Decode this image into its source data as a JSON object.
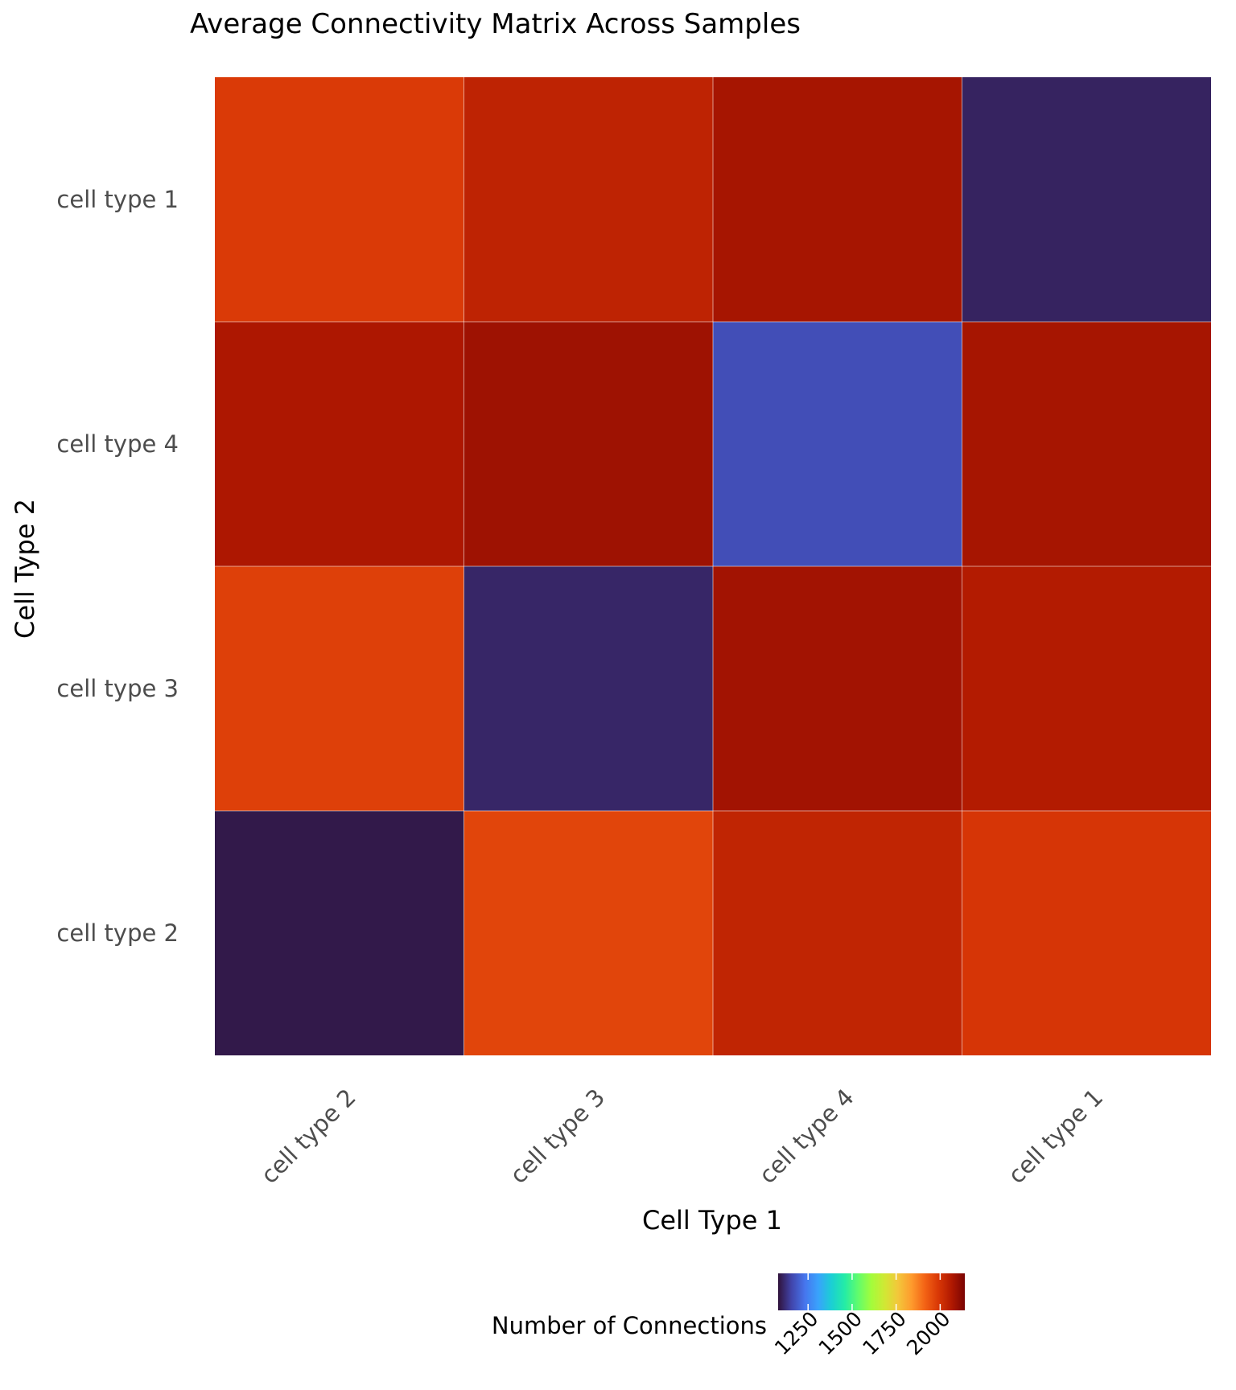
{
  "chart_data": {
    "type": "heatmap",
    "title": "Average Connectivity Matrix Across Samples",
    "xlabel": "Cell Type 1",
    "ylabel": "Cell Type 2",
    "x_categories": [
      "cell type 2",
      "cell type 3",
      "cell type 4",
      "cell type 1"
    ],
    "y_categories_top_to_bottom": [
      "cell type 1",
      "cell type 4",
      "cell type 3",
      "cell type 2"
    ],
    "values": [
      [
        1985,
        2040,
        2080,
        1105
      ],
      [
        2070,
        2090,
        1170,
        2080
      ],
      [
        1975,
        1110,
        2085,
        2060
      ],
      [
        1090,
        1965,
        2035,
        1995
      ]
    ],
    "colorscale": {
      "name": "turbo",
      "min": 1080,
      "max": 2140,
      "colors": [
        "#30123b",
        "#4145ab",
        "#4675ed",
        "#39a2fc",
        "#1bcfd4",
        "#24eca6",
        "#61fc6c",
        "#a4fc3b",
        "#d1e834",
        "#f3c63a",
        "#fe9b2d",
        "#f36315",
        "#d93806",
        "#b11901",
        "#7a0403"
      ]
    },
    "legend": {
      "title": "Number of Connections",
      "ticks": [
        1250,
        1500,
        1750,
        2000
      ],
      "placement": "bottom"
    },
    "grid": true
  }
}
